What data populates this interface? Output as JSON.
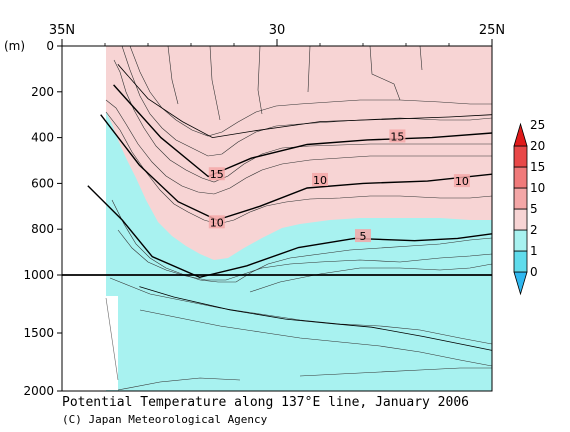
{
  "chart_data": {
    "type": "heatmap",
    "title": "Potential Temperature along 137°E line, January 2006",
    "credit": "(C) Japan Meteorological Agency",
    "ylabel": "(m)",
    "x_tick_labels": [
      "35N",
      "30",
      "25N"
    ],
    "x_ticks": [
      35,
      30,
      25
    ],
    "xlim": [
      35,
      25
    ],
    "depth_ticks": [
      0,
      200,
      400,
      600,
      800,
      1000,
      1500,
      2000
    ],
    "depth_tick_labels": [
      "0",
      "200",
      "400",
      "600",
      "800",
      "1000",
      "1500",
      "2000"
    ],
    "ylim": [
      0,
      2000
    ],
    "depth_axis_break": 1000,
    "colorbar": {
      "levels": [
        0,
        1,
        2,
        5,
        10,
        15,
        20,
        25
      ],
      "labels": [
        "0",
        "1",
        "2",
        "5",
        "10",
        "15",
        "20",
        "25"
      ],
      "colors": [
        "#2fb8f0",
        "#60dcec",
        "#a8f2f0",
        "#f7d4d4",
        "#f4a7a7",
        "#f07a7a",
        "#e84848",
        "#e01a1a"
      ]
    },
    "contour_labels": [
      {
        "text": "15",
        "lat": 31.4,
        "depth": 560
      },
      {
        "text": "15",
        "lat": 27.2,
        "depth": 395
      },
      {
        "text": "10",
        "lat": 29.0,
        "depth": 585
      },
      {
        "text": "10",
        "lat": 25.7,
        "depth": 590
      },
      {
        "text": "10",
        "lat": 31.4,
        "depth": 770
      },
      {
        "text": "5",
        "lat": 28.0,
        "depth": 830
      }
    ],
    "isotherms": [
      {
        "value": 20,
        "lat": [
          33.7,
          33.0,
          32.2,
          31.5,
          30.5,
          29.0,
          27.5,
          26.0,
          25.0
        ],
        "depth": [
          80,
          230,
          330,
          400,
          370,
          330,
          320,
          310,
          300
        ]
      },
      {
        "value": 15,
        "lat": [
          33.8,
          32.7,
          31.6,
          30.6,
          29.3,
          27.9,
          26.4,
          25.0
        ],
        "depth": [
          170,
          400,
          570,
          490,
          430,
          410,
          400,
          380
        ]
      },
      {
        "value": 10,
        "lat": [
          34.1,
          33.2,
          32.3,
          31.4,
          30.4,
          29.3,
          28.0,
          26.5,
          25.0
        ],
        "depth": [
          300,
          520,
          680,
          760,
          700,
          620,
          600,
          590,
          560
        ]
      },
      {
        "value": 5,
        "lat": [
          34.4,
          33.6,
          32.9,
          31.8,
          30.7,
          29.5,
          28.2,
          26.8,
          25.8,
          25.0
        ],
        "depth": [
          610,
          760,
          920,
          1020,
          960,
          880,
          840,
          850,
          840,
          820
        ]
      },
      {
        "value": 2,
        "lat": [
          33.2,
          32.4,
          31.1,
          29.8,
          28.7,
          27.8,
          26.6,
          25.4,
          25.0
        ],
        "depth": [
          1100,
          1190,
          1300,
          1380,
          1420,
          1450,
          1530,
          1620,
          1650
        ]
      }
    ]
  }
}
